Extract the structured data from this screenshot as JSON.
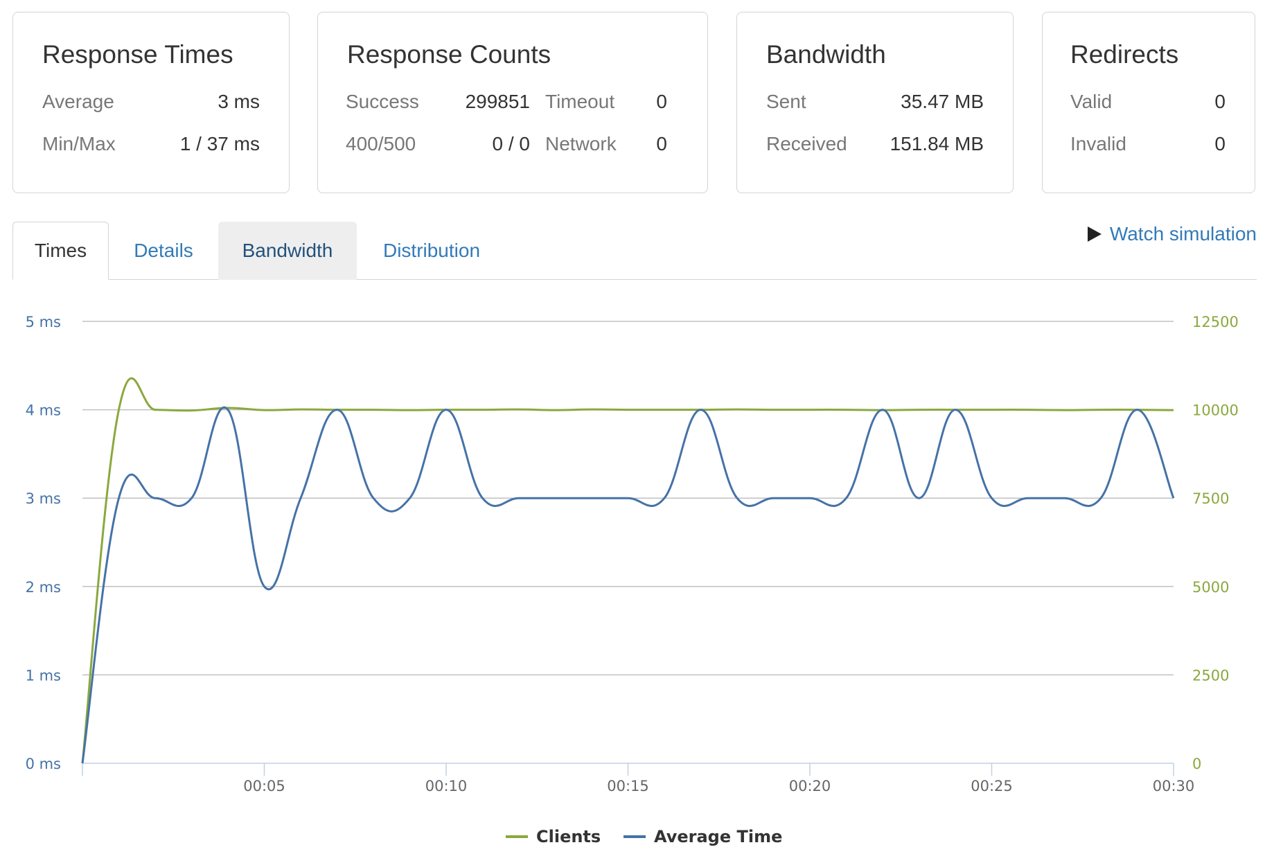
{
  "cards": {
    "response_times": {
      "title": "Response Times",
      "average_label": "Average",
      "average_value": "3 ms",
      "minmax_label": "Min/Max",
      "minmax_value": "1 / 37 ms"
    },
    "response_counts": {
      "title": "Response Counts",
      "success_label": "Success",
      "success_value": "299851",
      "timeout_label": "Timeout",
      "timeout_value": "0",
      "errors_label": "400/500",
      "errors_value": "0 / 0",
      "network_label": "Network",
      "network_value": "0"
    },
    "bandwidth": {
      "title": "Bandwidth",
      "sent_label": "Sent",
      "sent_value": "35.47 MB",
      "received_label": "Received",
      "received_value": "151.84 MB"
    },
    "redirects": {
      "title": "Redirects",
      "valid_label": "Valid",
      "valid_value": "0",
      "invalid_label": "Invalid",
      "invalid_value": "0"
    }
  },
  "tabs": [
    {
      "label": "Times",
      "state": "active"
    },
    {
      "label": "Details",
      "state": "normal"
    },
    {
      "label": "Bandwidth",
      "state": "hover"
    },
    {
      "label": "Distribution",
      "state": "normal"
    }
  ],
  "watch": {
    "label": "Watch simulation",
    "icon": "play-icon"
  },
  "colors": {
    "clients": "#8aa83e",
    "average_time": "#4572a7",
    "grid": "#c0c0c0"
  },
  "chart_data": {
    "type": "line",
    "title": "",
    "xlabel": "",
    "x_ticks": [
      "00:05",
      "00:10",
      "00:15",
      "00:20",
      "00:25",
      "00:30"
    ],
    "x_tick_seconds": [
      5,
      10,
      15,
      20,
      25,
      30
    ],
    "xlim": [
      0,
      30
    ],
    "y_left": {
      "ticks": [
        "0 ms",
        "1 ms",
        "2 ms",
        "3 ms",
        "4 ms",
        "5 ms"
      ],
      "range": [
        0,
        5
      ]
    },
    "y_right": {
      "ticks": [
        "0",
        "2500",
        "5000",
        "7500",
        "10000",
        "12500"
      ],
      "range": [
        0,
        12500
      ]
    },
    "grid": true,
    "legend_position": "bottom-center",
    "x": [
      0,
      1,
      2,
      3,
      4,
      5,
      6,
      7,
      8,
      9,
      10,
      11,
      12,
      13,
      14,
      15,
      16,
      17,
      18,
      19,
      20,
      21,
      22,
      23,
      24,
      25,
      26,
      27,
      28,
      29,
      30
    ],
    "series": [
      {
        "name": "Clients",
        "axis": "right",
        "values": [
          0,
          10000,
          10000,
          9980,
          10050,
          9990,
          10010,
          10000,
          10000,
          9990,
          10000,
          10000,
          10010,
          9990,
          10010,
          10000,
          10000,
          10000,
          10010,
          10000,
          10000,
          10000,
          9990,
          10000,
          10000,
          10000,
          10000,
          9990,
          10000,
          10000,
          9990
        ]
      },
      {
        "name": "Average Time",
        "axis": "left",
        "values": [
          0,
          3,
          3,
          3,
          4,
          2,
          3,
          4,
          3,
          3,
          4,
          3,
          3,
          3,
          3,
          3,
          3,
          4,
          3,
          3,
          3,
          3,
          4,
          3,
          4,
          3,
          3,
          3,
          3,
          4,
          3
        ]
      }
    ]
  }
}
